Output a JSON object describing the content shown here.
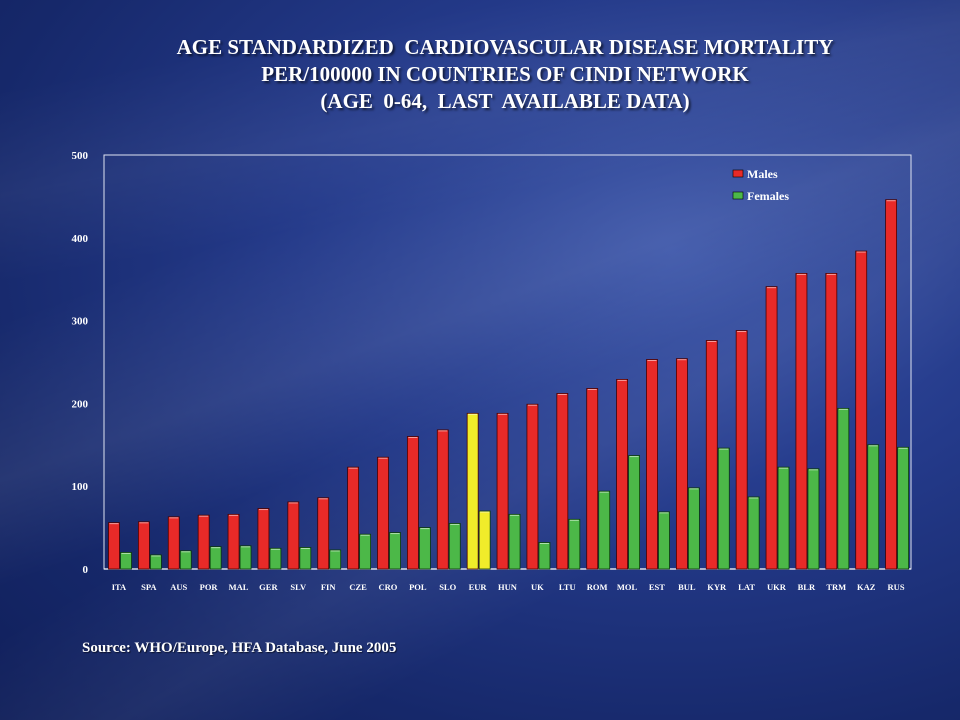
{
  "chart_data": {
    "type": "bar",
    "title": [
      "AGE STANDARDIZED  CARDIOVASCULAR DISEASE MORTALITY",
      "PER/100000 IN COUNTRIES OF CINDI NETWORK",
      "(AGE  0-64,  LAST  AVAILABLE DATA)"
    ],
    "xlabel": "",
    "ylabel": "",
    "ylim": [
      0,
      500
    ],
    "yticks": [
      "0",
      "100",
      "200",
      "300",
      "400",
      "500"
    ],
    "grid": false,
    "legend_position": "top-right",
    "categories": [
      "ITA",
      "SPA",
      "AUS",
      "POR",
      "MAL",
      "GER",
      "SLV",
      "FIN",
      "CZE",
      "CRO",
      "POL",
      "SLO",
      "EUR",
      "HUN",
      "UK",
      "LTU",
      "ROM",
      "MOL",
      "EST",
      "BUL",
      "KYR",
      "LAT",
      "UKR",
      "BLR",
      "TRM",
      "KAZ",
      "RUS"
    ],
    "highlight_category": "EUR",
    "highlight_color": "#f0ec2a",
    "series": [
      {
        "name": "Males",
        "color": "#e82a28",
        "values": [
          56,
          57,
          63,
          65,
          66,
          73,
          81,
          86,
          123,
          135,
          160,
          168,
          188,
          188,
          199,
          212,
          218,
          229,
          253,
          254,
          276,
          288,
          341,
          357,
          357,
          384,
          446
        ]
      },
      {
        "name": "Females",
        "color": "#4cb848",
        "values": [
          20,
          17,
          22,
          27,
          28,
          25,
          26,
          23,
          42,
          44,
          50,
          55,
          70,
          66,
          32,
          60,
          94,
          137,
          69,
          98,
          146,
          87,
          123,
          121,
          194,
          150,
          147
        ]
      }
    ]
  },
  "source": "Source: WHO/Europe, HFA Database, June 2005"
}
